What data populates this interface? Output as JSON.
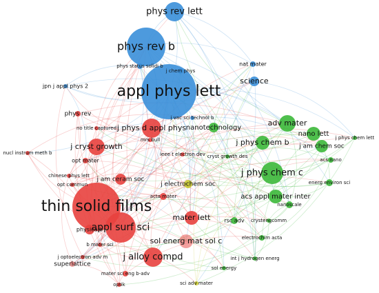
{
  "nodes": [
    "phys rev lett",
    "phys rev b",
    "phys status solidi b",
    "j chem phys",
    "nat mater",
    "science",
    "jpn j appl phys 2",
    "appl phys lett",
    "phys rev",
    "j vac sci technol b",
    "no title captured",
    "j phys d appl phys",
    "nanotechnology",
    "adv mater",
    "nano lett",
    "j phys chem b",
    "j am chem soc",
    "j phys chem lett",
    "mrs bull",
    "j cryst growth",
    "nucl instrum meth b",
    "ieee t electron dev",
    "cryst growth des",
    "acs nano",
    "opt mater",
    "j am ceram soc",
    "j phys chem c",
    "chinese phys lett",
    "j electrochem soc",
    "energ environ sci",
    "opt commun",
    "acta mater",
    "acs appl mater inter",
    "nanoscale",
    "thin solid films",
    "mater lett",
    "appl surf sci",
    "rsc adv",
    "crystengcomm",
    "physica b",
    "sol energ mat sol c",
    "electrochim acta",
    "b mater sci",
    "j optoelectron adv m",
    "int j hydrogen energ",
    "j alloy compd",
    "superlattice",
    "sol energy",
    "mater sci eng b-adv",
    "optik",
    "sci adv mater"
  ]
}
